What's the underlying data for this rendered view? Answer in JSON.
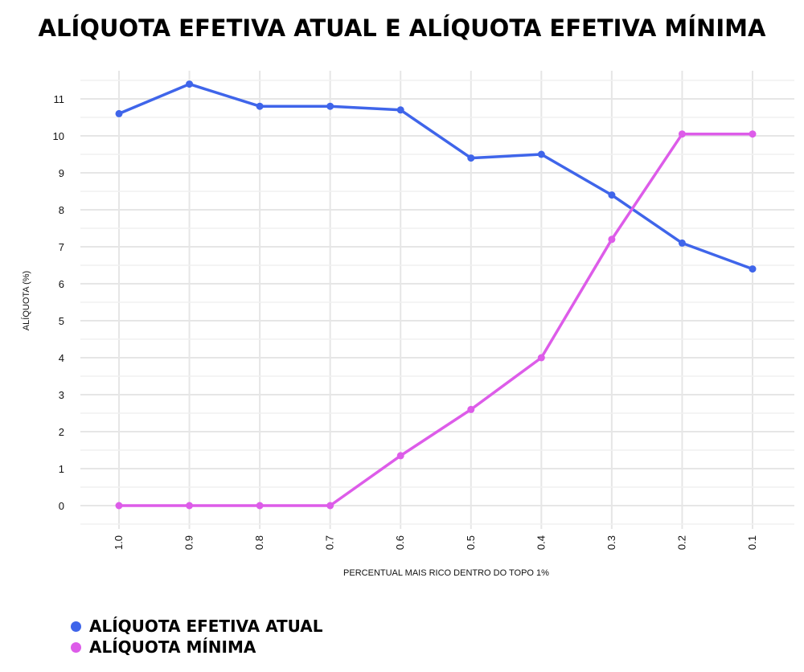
{
  "chart_data": {
    "type": "line",
    "title": "ALÍQUOTA EFETIVA ATUAL E ALÍQUOTA EFETIVA MÍNIMA",
    "xlabel": "PERCENTUAL MAIS RICO DENTRO DO TOPO 1%",
    "ylabel": "ALÍQUOTA (%)",
    "categories": [
      "1.0",
      "0.9",
      "0.8",
      "0.7",
      "0.6",
      "0.5",
      "0.4",
      "0.3",
      "0.2",
      "0.1"
    ],
    "yticks": [
      "0",
      "1",
      "2",
      "3",
      "4",
      "5",
      "6",
      "7",
      "8",
      "9",
      "10",
      "11"
    ],
    "ylim": [
      -0.5,
      11.5
    ],
    "grid": true,
    "legend_position": "bottom-left",
    "series": [
      {
        "name": "ALÍQUOTA EFETIVA ATUAL",
        "color": "#3f65ea",
        "values": [
          10.6,
          11.4,
          10.8,
          10.8,
          10.7,
          9.4,
          9.5,
          8.4,
          7.1,
          6.4
        ]
      },
      {
        "name": "ALÍQUOTA MÍNIMA",
        "color": "#dd5ce9",
        "values": [
          0.0,
          0.0,
          0.0,
          0.0,
          1.35,
          2.6,
          4.0,
          7.2,
          10.05,
          10.05
        ]
      }
    ]
  }
}
